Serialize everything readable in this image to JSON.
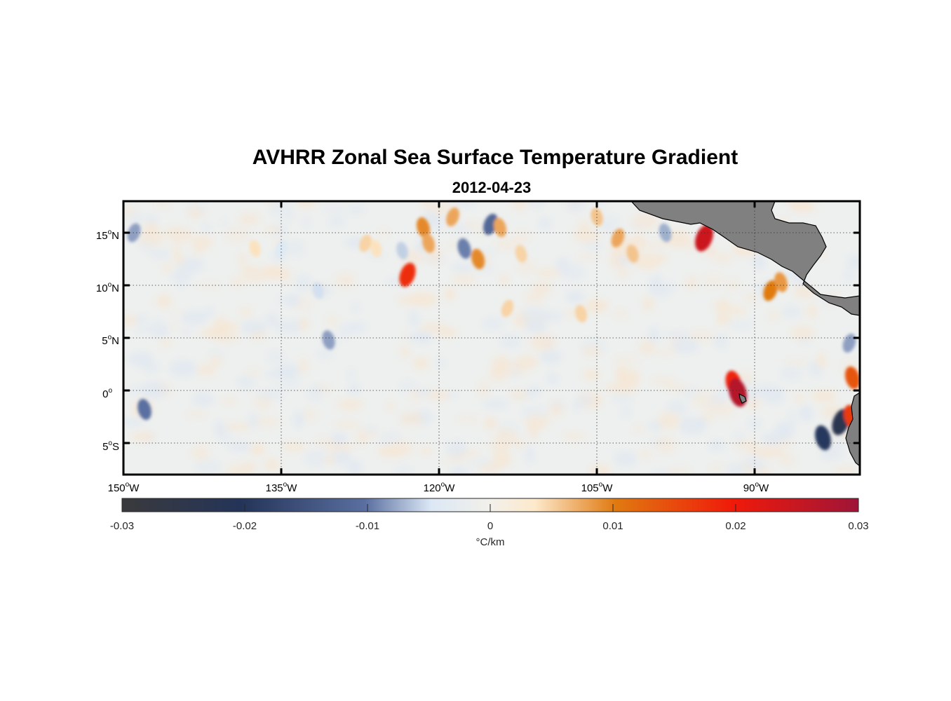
{
  "title": "AVHRR Zonal Sea Surface Temperature Gradient",
  "subtitle": "2012-04-23",
  "map": {
    "lon_range": [
      -150,
      -80
    ],
    "lat_range": [
      -8,
      18
    ],
    "grid": true,
    "land_color": "#808080",
    "lon_ticks": [
      {
        "value": -150,
        "num": "150",
        "sup": "o",
        "hemi": "W"
      },
      {
        "value": -135,
        "num": "135",
        "sup": "o",
        "hemi": "W"
      },
      {
        "value": -120,
        "num": "120",
        "sup": "o",
        "hemi": "W"
      },
      {
        "value": -105,
        "num": "105",
        "sup": "o",
        "hemi": "W"
      },
      {
        "value": -90,
        "num": "90",
        "sup": "o",
        "hemi": "W"
      }
    ],
    "lat_ticks": [
      {
        "value": 15,
        "num": "15",
        "sup": "o",
        "hemi": "N"
      },
      {
        "value": 10,
        "num": "10",
        "sup": "o",
        "hemi": "N"
      },
      {
        "value": 5,
        "num": "5",
        "sup": "o",
        "hemi": "N"
      },
      {
        "value": 0,
        "num": "0",
        "sup": "o",
        "hemi": ""
      },
      {
        "value": -5,
        "num": "5",
        "sup": "o",
        "hemi": "S"
      }
    ]
  },
  "colorbar": {
    "min": -0.03,
    "max": 0.03,
    "ticks": [
      "-0.03",
      "-0.02",
      "-0.01",
      "0",
      "0.01",
      "0.02",
      "0.03"
    ],
    "tick_values": [
      -0.03,
      -0.02,
      -0.01,
      0,
      0.01,
      0.02,
      0.03
    ],
    "label": "°C/km",
    "colormap": [
      "#3a3a3c",
      "#243458",
      "#5a6fa0",
      "#dce8f5",
      "#f2f0ea",
      "#fde9cc",
      "#e07a10",
      "#f01a0a",
      "#9e1538"
    ]
  },
  "chart_data": {
    "type": "heatmap",
    "variable": "Zonal SST gradient",
    "units": "°C/km",
    "value_range": [
      -0.03,
      0.03
    ],
    "features": [
      {
        "lon": -149,
        "lat": 15,
        "value": -0.012
      },
      {
        "lon": -148,
        "lat": -1.8,
        "value": -0.015
      },
      {
        "lon": -137.5,
        "lat": 13.5,
        "value": 0.008
      },
      {
        "lon": -135,
        "lat": 13.5,
        "value": -0.007
      },
      {
        "lon": -131.5,
        "lat": 9.5,
        "value": -0.008
      },
      {
        "lon": -130.5,
        "lat": 4.8,
        "value": -0.012
      },
      {
        "lon": -127,
        "lat": 14,
        "value": 0.009
      },
      {
        "lon": -126,
        "lat": 13.5,
        "value": 0.008
      },
      {
        "lon": -123.5,
        "lat": 13.3,
        "value": -0.009
      },
      {
        "lon": -123,
        "lat": 11,
        "value": 0.021
      },
      {
        "lon": -121.5,
        "lat": 15.5,
        "value": 0.014
      },
      {
        "lon": -121,
        "lat": 14,
        "value": 0.012
      },
      {
        "lon": -118.7,
        "lat": 16.5,
        "value": 0.012
      },
      {
        "lon": -117.6,
        "lat": 13.5,
        "value": -0.014
      },
      {
        "lon": -116.3,
        "lat": 12.5,
        "value": 0.014
      },
      {
        "lon": -115.1,
        "lat": 15.8,
        "value": -0.016
      },
      {
        "lon": -114.2,
        "lat": 15.5,
        "value": 0.012
      },
      {
        "lon": -112.2,
        "lat": 13,
        "value": 0.009
      },
      {
        "lon": -113.5,
        "lat": 7.8,
        "value": 0.009
      },
      {
        "lon": -106.5,
        "lat": 7.3,
        "value": 0.009
      },
      {
        "lon": -105,
        "lat": 16.5,
        "value": 0.01
      },
      {
        "lon": -103,
        "lat": 14.5,
        "value": 0.012
      },
      {
        "lon": -101.6,
        "lat": 13,
        "value": 0.01
      },
      {
        "lon": -98.5,
        "lat": 15,
        "value": -0.011
      },
      {
        "lon": -94.8,
        "lat": 14.5,
        "value": 0.026
      },
      {
        "lon": -92,
        "lat": 0.7,
        "value": 0.022
      },
      {
        "lon": -91.6,
        "lat": -0.2,
        "value": 0.028
      },
      {
        "lon": -88.5,
        "lat": 9.5,
        "value": 0.015
      },
      {
        "lon": -87.5,
        "lat": 10.3,
        "value": 0.013
      },
      {
        "lon": -83.5,
        "lat": -4.5,
        "value": -0.022
      },
      {
        "lon": -81.8,
        "lat": -3,
        "value": -0.025
      },
      {
        "lon": -80.8,
        "lat": -2.5,
        "value": 0.02
      },
      {
        "lon": -80.7,
        "lat": 1.2,
        "value": 0.018
      },
      {
        "lon": -81,
        "lat": 4.5,
        "value": -0.012
      }
    ]
  }
}
